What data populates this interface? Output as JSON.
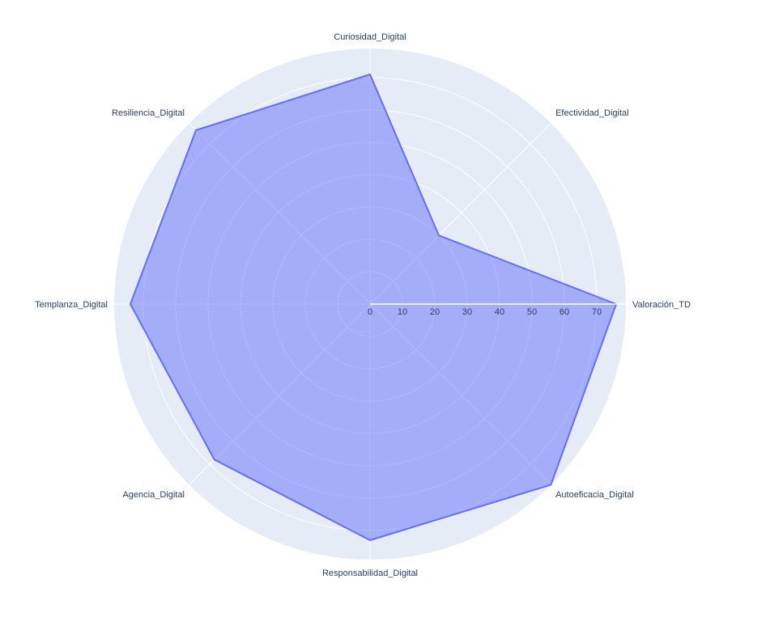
{
  "chart_data": {
    "type": "radar",
    "title": "",
    "categories": [
      "Valoración_TD",
      "Efectividad_Digital",
      "Curiosidad_Digital",
      "Resiliencia_Digital",
      "Templanza_Digital",
      "Agencia_Digital",
      "Responsabilidad_Digital",
      "Autoeficacia_Digital"
    ],
    "series": [
      {
        "values": [
          76,
          30,
          71,
          76,
          74,
          68,
          73,
          79
        ]
      }
    ],
    "radial_range": [
      0,
      79
    ],
    "radial_ticks": [
      0,
      10,
      20,
      30,
      40,
      50,
      60,
      70
    ],
    "grid": true,
    "colors": {
      "polar_bg": "#e5ecf6",
      "grid": "#ffffff",
      "line": "#636efa",
      "fill": "rgba(99,110,250,0.5)",
      "text": "#2a3f5f"
    }
  }
}
